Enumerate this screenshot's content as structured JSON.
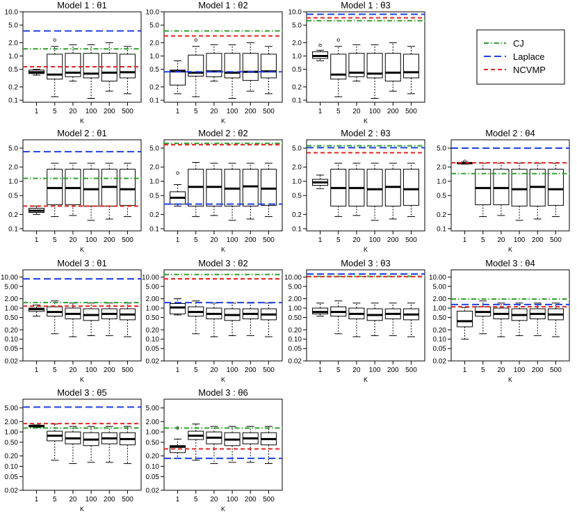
{
  "legend": {
    "position": "top-right",
    "items": [
      {
        "label": "CJ",
        "color": "#2ca02c",
        "dash": "dotdash"
      },
      {
        "label": "Laplace",
        "color": "#1f3fe6",
        "dash": "dashed"
      },
      {
        "label": "NCVMP",
        "color": "#e6231f",
        "dash": "dashed-short"
      }
    ]
  },
  "chart_data": [
    {
      "type": "box",
      "title": "Model 1 : θ1",
      "xlabel": "K",
      "categories": [
        "1",
        "5",
        "20",
        "100",
        "200",
        "500"
      ],
      "yscale": "log",
      "ylim": [
        0.09,
        10
      ],
      "yticks": [
        "0.1",
        "0.2",
        "0.5",
        "1.0",
        "2.0",
        "5.0",
        "10.0"
      ],
      "boxes": [
        {
          "lw": 0.37,
          "q1": 0.4,
          "med": 0.43,
          "q3": 0.48,
          "uw": 0.5,
          "out": []
        },
        {
          "lw": 0.12,
          "q1": 0.3,
          "med": 0.38,
          "q3": 1.1,
          "uw": 1.65,
          "out": [
            2.3
          ]
        },
        {
          "lw": 0.27,
          "q1": 0.34,
          "med": 0.42,
          "q3": 1.15,
          "uw": 1.8,
          "out": []
        },
        {
          "lw": 0.11,
          "q1": 0.32,
          "med": 0.4,
          "q3": 1.15,
          "uw": 1.8,
          "out": []
        },
        {
          "lw": 0.16,
          "q1": 0.27,
          "med": 0.42,
          "q3": 1.15,
          "uw": 2.0,
          "out": []
        },
        {
          "lw": 0.14,
          "q1": 0.32,
          "med": 0.43,
          "q3": 1.1,
          "uw": 1.65,
          "out": []
        }
      ],
      "lines": {
        "CJ": 1.45,
        "Laplace": 3.7,
        "NCVMP": 0.57
      }
    },
    {
      "type": "box",
      "title": "Model 1 : θ2",
      "xlabel": "K",
      "categories": [
        "1",
        "5",
        "20",
        "100",
        "200",
        "500"
      ],
      "yscale": "log",
      "ylim": [
        0.09,
        10
      ],
      "yticks": [
        "0.1",
        "0.2",
        "0.5",
        "1.0",
        "2.0",
        "5.0",
        "10.0"
      ],
      "boxes": [
        {
          "lw": 0.14,
          "q1": 0.22,
          "med": 0.45,
          "q3": 0.48,
          "uw": 0.78,
          "out": []
        },
        {
          "lw": 0.12,
          "q1": 0.35,
          "med": 0.42,
          "q3": 1.05,
          "uw": 1.65,
          "out": [
            2.3
          ]
        },
        {
          "lw": 0.27,
          "q1": 0.34,
          "med": 0.45,
          "q3": 1.15,
          "uw": 1.8,
          "out": []
        },
        {
          "lw": 0.11,
          "q1": 0.32,
          "med": 0.42,
          "q3": 1.15,
          "uw": 1.8,
          "out": []
        },
        {
          "lw": 0.16,
          "q1": 0.28,
          "med": 0.44,
          "q3": 1.15,
          "uw": 2.0,
          "out": []
        },
        {
          "lw": 0.14,
          "q1": 0.32,
          "med": 0.45,
          "q3": 1.1,
          "uw": 1.65,
          "out": []
        }
      ],
      "lines": {
        "CJ": 3.7,
        "Laplace": 0.44,
        "NCVMP": 2.85
      }
    },
    {
      "type": "box",
      "title": "Model 1 : θ3",
      "xlabel": "K",
      "categories": [
        "1",
        "5",
        "20",
        "100",
        "200",
        "500"
      ],
      "yscale": "log",
      "ylim": [
        0.09,
        10
      ],
      "yticks": [
        "0.1",
        "0.2",
        "0.5",
        "1.0",
        "2.0",
        "5.0",
        "10.0"
      ],
      "boxes": [
        {
          "lw": 0.78,
          "q1": 0.88,
          "med": 1.0,
          "q3": 1.25,
          "uw": 1.35,
          "out": [
            1.75
          ]
        },
        {
          "lw": 0.12,
          "q1": 0.3,
          "med": 0.38,
          "q3": 1.1,
          "uw": 1.65,
          "out": [
            2.3
          ]
        },
        {
          "lw": 0.27,
          "q1": 0.34,
          "med": 0.42,
          "q3": 1.15,
          "uw": 1.8,
          "out": []
        },
        {
          "lw": 0.11,
          "q1": 0.32,
          "med": 0.4,
          "q3": 1.15,
          "uw": 1.8,
          "out": []
        },
        {
          "lw": 0.16,
          "q1": 0.27,
          "med": 0.42,
          "q3": 1.15,
          "uw": 2.0,
          "out": []
        },
        {
          "lw": 0.14,
          "q1": 0.32,
          "med": 0.43,
          "q3": 1.1,
          "uw": 1.65,
          "out": []
        }
      ],
      "lines": {
        "CJ": 6.3,
        "Laplace": 8.8,
        "NCVMP": 7.3
      }
    },
    {
      "type": "box",
      "title": "Model 2 : θ1",
      "xlabel": "K",
      "categories": [
        "1",
        "5",
        "20",
        "100",
        "200",
        "500"
      ],
      "yscale": "log",
      "ylim": [
        0.09,
        7.5
      ],
      "yticks": [
        "0.1",
        "0.2",
        "0.5",
        "1.0",
        "2.0",
        "5.0"
      ],
      "boxes": [
        {
          "lw": 0.2,
          "q1": 0.22,
          "med": 0.24,
          "q3": 0.27,
          "uw": 0.3,
          "out": []
        },
        {
          "lw": 0.18,
          "q1": 0.32,
          "med": 0.72,
          "q3": 1.8,
          "uw": 2.4,
          "out": []
        },
        {
          "lw": 0.19,
          "q1": 0.32,
          "med": 0.72,
          "q3": 1.8,
          "uw": 2.4,
          "out": []
        },
        {
          "lw": 0.15,
          "q1": 0.3,
          "med": 0.68,
          "q3": 1.8,
          "uw": 2.4,
          "out": []
        },
        {
          "lw": 0.16,
          "q1": 0.3,
          "med": 0.76,
          "q3": 1.8,
          "uw": 2.4,
          "out": []
        },
        {
          "lw": 0.18,
          "q1": 0.31,
          "med": 0.68,
          "q3": 1.8,
          "uw": 2.4,
          "out": []
        }
      ],
      "lines": {
        "CJ": 1.15,
        "Laplace": 4.2,
        "NCVMP": 0.3
      }
    },
    {
      "type": "box",
      "title": "Model 2 : θ2",
      "xlabel": "K",
      "categories": [
        "1",
        "5",
        "20",
        "100",
        "200",
        "500"
      ],
      "yscale": "log",
      "ylim": [
        0.09,
        7.5
      ],
      "yticks": [
        "0.1",
        "0.2",
        "0.5",
        "1.0",
        "2.0",
        "5.0"
      ],
      "boxes": [
        {
          "lw": 0.3,
          "q1": 0.33,
          "med": 0.45,
          "q3": 0.6,
          "uw": 0.85,
          "out": [
            1.5
          ]
        },
        {
          "lw": 0.18,
          "q1": 0.3,
          "med": 0.76,
          "q3": 1.8,
          "uw": 2.5,
          "out": []
        },
        {
          "lw": 0.19,
          "q1": 0.3,
          "med": 0.76,
          "q3": 1.8,
          "uw": 2.4,
          "out": []
        },
        {
          "lw": 0.15,
          "q1": 0.3,
          "med": 0.7,
          "q3": 1.8,
          "uw": 2.4,
          "out": []
        },
        {
          "lw": 0.16,
          "q1": 0.3,
          "med": 0.78,
          "q3": 1.8,
          "uw": 2.4,
          "out": []
        },
        {
          "lw": 0.18,
          "q1": 0.31,
          "med": 0.7,
          "q3": 1.8,
          "uw": 2.4,
          "out": []
        }
      ],
      "lines": {
        "CJ": 6.3,
        "Laplace": 0.33,
        "NCVMP": 5.9
      }
    },
    {
      "type": "box",
      "title": "Model 2 : θ3",
      "xlabel": "K",
      "categories": [
        "1",
        "5",
        "20",
        "100",
        "200",
        "500"
      ],
      "yscale": "log",
      "ylim": [
        0.09,
        7.5
      ],
      "yticks": [
        "0.1",
        "0.2",
        "0.5",
        "1.0",
        "2.0",
        "5.0"
      ],
      "boxes": [
        {
          "lw": 0.7,
          "q1": 0.82,
          "med": 0.95,
          "q3": 1.1,
          "uw": 1.35,
          "out": []
        },
        {
          "lw": 0.18,
          "q1": 0.3,
          "med": 0.72,
          "q3": 1.8,
          "uw": 2.4,
          "out": []
        },
        {
          "lw": 0.19,
          "q1": 0.3,
          "med": 0.72,
          "q3": 1.8,
          "uw": 2.4,
          "out": []
        },
        {
          "lw": 0.15,
          "q1": 0.3,
          "med": 0.68,
          "q3": 1.8,
          "uw": 2.4,
          "out": []
        },
        {
          "lw": 0.16,
          "q1": 0.3,
          "med": 0.76,
          "q3": 1.8,
          "uw": 2.4,
          "out": []
        },
        {
          "lw": 0.18,
          "q1": 0.31,
          "med": 0.68,
          "q3": 1.8,
          "uw": 2.4,
          "out": []
        }
      ],
      "lines": {
        "CJ": 5.6,
        "Laplace": 5.1,
        "NCVMP": 4.0
      }
    },
    {
      "type": "box",
      "title": "Model 2 : θ4",
      "xlabel": "K",
      "categories": [
        "1",
        "5",
        "20",
        "100",
        "200",
        "500"
      ],
      "yscale": "log",
      "ylim": [
        0.09,
        7.5
      ],
      "yticks": [
        "0.1",
        "0.2",
        "0.5",
        "1.0",
        "2.0",
        "5.0"
      ],
      "boxes": [
        {
          "lw": 2.3,
          "q1": 2.35,
          "med": 2.4,
          "q3": 2.5,
          "uw": 2.55,
          "out": [
            2.65
          ]
        },
        {
          "lw": 0.18,
          "q1": 0.32,
          "med": 0.72,
          "q3": 1.8,
          "uw": 2.4,
          "out": []
        },
        {
          "lw": 0.19,
          "q1": 0.32,
          "med": 0.72,
          "q3": 1.8,
          "uw": 2.4,
          "out": []
        },
        {
          "lw": 0.15,
          "q1": 0.3,
          "med": 0.68,
          "q3": 1.8,
          "uw": 2.4,
          "out": []
        },
        {
          "lw": 0.16,
          "q1": 0.3,
          "med": 0.76,
          "q3": 1.8,
          "uw": 2.4,
          "out": []
        },
        {
          "lw": 0.18,
          "q1": 0.31,
          "med": 0.68,
          "q3": 1.8,
          "uw": 2.4,
          "out": []
        }
      ],
      "lines": {
        "CJ": 1.45,
        "Laplace": 5.0,
        "NCVMP": 2.45
      }
    },
    {
      "type": "box",
      "title": "Model 3 : θ1",
      "xlabel": "K",
      "categories": [
        "1",
        "5",
        "20",
        "100",
        "200",
        "500"
      ],
      "yscale": "log",
      "ylim": [
        0.02,
        17
      ],
      "yticks": [
        "0.02",
        "0.05",
        "0.10",
        "0.20",
        "0.50",
        "1.00",
        "2.00",
        "5.00",
        "10.00"
      ],
      "boxes": [
        {
          "lw": 0.55,
          "q1": 0.78,
          "med": 0.92,
          "q3": 1.0,
          "uw": 1.25,
          "out": []
        },
        {
          "lw": 0.15,
          "q1": 0.55,
          "med": 0.75,
          "q3": 1.1,
          "uw": 1.7,
          "out": []
        },
        {
          "lw": 0.12,
          "q1": 0.45,
          "med": 0.65,
          "q3": 1.0,
          "uw": 1.45,
          "out": []
        },
        {
          "lw": 0.13,
          "q1": 0.4,
          "med": 0.6,
          "q3": 0.95,
          "uw": 1.45,
          "out": []
        },
        {
          "lw": 0.13,
          "q1": 0.45,
          "med": 0.65,
          "q3": 0.95,
          "uw": 1.45,
          "out": []
        },
        {
          "lw": 0.12,
          "q1": 0.42,
          "med": 0.62,
          "q3": 0.95,
          "uw": 1.45,
          "out": []
        }
      ],
      "lines": {
        "CJ": 1.5,
        "Laplace": 8.7,
        "NCVMP": 1.15
      }
    },
    {
      "type": "box",
      "title": "Model 3 : θ2",
      "xlabel": "K",
      "categories": [
        "1",
        "5",
        "20",
        "100",
        "200",
        "500"
      ],
      "yscale": "log",
      "ylim": [
        0.02,
        17
      ],
      "yticks": [
        "0.02",
        "0.05",
        "0.10",
        "0.20",
        "0.50",
        "1.00",
        "2.00",
        "5.00",
        "10.00"
      ],
      "boxes": [
        {
          "lw": 0.6,
          "q1": 0.65,
          "med": 1.05,
          "q3": 1.4,
          "uw": 2.0,
          "out": []
        },
        {
          "lw": 0.15,
          "q1": 0.55,
          "med": 0.75,
          "q3": 1.1,
          "uw": 1.7,
          "out": []
        },
        {
          "lw": 0.12,
          "q1": 0.45,
          "med": 0.65,
          "q3": 1.0,
          "uw": 1.45,
          "out": []
        },
        {
          "lw": 0.13,
          "q1": 0.4,
          "med": 0.6,
          "q3": 0.95,
          "uw": 1.45,
          "out": []
        },
        {
          "lw": 0.13,
          "q1": 0.45,
          "med": 0.65,
          "q3": 0.95,
          "uw": 1.45,
          "out": []
        },
        {
          "lw": 0.12,
          "q1": 0.42,
          "med": 0.62,
          "q3": 0.95,
          "uw": 1.45,
          "out": []
        }
      ],
      "lines": {
        "CJ": 12.0,
        "Laplace": 1.5,
        "NCVMP": 8.7
      }
    },
    {
      "type": "box",
      "title": "Model 3 : θ3",
      "xlabel": "K",
      "categories": [
        "1",
        "5",
        "20",
        "100",
        "200",
        "500"
      ],
      "yscale": "log",
      "ylim": [
        0.02,
        17
      ],
      "yticks": [
        "0.02",
        "0.05",
        "0.10",
        "0.20",
        "0.50",
        "1.00",
        "2.00",
        "5.00",
        "10.00"
      ],
      "boxes": [
        {
          "lw": 0.55,
          "q1": 0.65,
          "med": 0.75,
          "q3": 1.0,
          "uw": 1.45,
          "out": []
        },
        {
          "lw": 0.15,
          "q1": 0.55,
          "med": 0.75,
          "q3": 1.1,
          "uw": 1.7,
          "out": []
        },
        {
          "lw": 0.12,
          "q1": 0.45,
          "med": 0.65,
          "q3": 1.0,
          "uw": 1.45,
          "out": []
        },
        {
          "lw": 0.13,
          "q1": 0.4,
          "med": 0.6,
          "q3": 0.95,
          "uw": 1.45,
          "out": []
        },
        {
          "lw": 0.13,
          "q1": 0.45,
          "med": 0.65,
          "q3": 0.95,
          "uw": 1.45,
          "out": []
        },
        {
          "lw": 0.12,
          "q1": 0.42,
          "med": 0.62,
          "q3": 0.95,
          "uw": 1.45,
          "out": []
        }
      ],
      "lines": {
        "CJ": 10.5,
        "Laplace": 12.5,
        "NCVMP": 10.3
      }
    },
    {
      "type": "box",
      "title": "Model 3 : θ4",
      "xlabel": "K",
      "categories": [
        "1",
        "5",
        "20",
        "100",
        "200",
        "500"
      ],
      "yscale": "log",
      "ylim": [
        0.02,
        17
      ],
      "yticks": [
        "0.02",
        "0.05",
        "0.10",
        "0.20",
        "0.50",
        "1.00",
        "2.00",
        "5.00",
        "10.00"
      ],
      "boxes": [
        {
          "lw": 0.1,
          "q1": 0.25,
          "med": 0.38,
          "q3": 0.8,
          "uw": 1.05,
          "out": []
        },
        {
          "lw": 0.15,
          "q1": 0.55,
          "med": 0.75,
          "q3": 1.1,
          "uw": 1.7,
          "out": []
        },
        {
          "lw": 0.12,
          "q1": 0.45,
          "med": 0.65,
          "q3": 1.0,
          "uw": 1.45,
          "out": []
        },
        {
          "lw": 0.13,
          "q1": 0.4,
          "med": 0.6,
          "q3": 0.95,
          "uw": 1.45,
          "out": []
        },
        {
          "lw": 0.13,
          "q1": 0.45,
          "med": 0.65,
          "q3": 0.95,
          "uw": 1.45,
          "out": []
        },
        {
          "lw": 0.12,
          "q1": 0.42,
          "med": 0.62,
          "q3": 0.95,
          "uw": 1.45,
          "out": []
        }
      ],
      "lines": {
        "CJ": 1.95,
        "Laplace": 1.3,
        "NCVMP": 1.1
      }
    },
    {
      "type": "box",
      "title": "Model 3 : θ5",
      "xlabel": "K",
      "categories": [
        "1",
        "5",
        "20",
        "100",
        "200",
        "500"
      ],
      "yscale": "log",
      "ylim": [
        0.02,
        9
      ],
      "yticks": [
        "0.02",
        "0.05",
        "0.10",
        "0.20",
        "0.50",
        "1.00",
        "2.00",
        "5.00"
      ],
      "boxes": [
        {
          "lw": 1.35,
          "q1": 1.4,
          "med": 1.5,
          "q3": 1.55,
          "uw": 1.6,
          "out": []
        },
        {
          "lw": 0.15,
          "q1": 0.55,
          "med": 0.78,
          "q3": 1.05,
          "uw": 1.7,
          "out": []
        },
        {
          "lw": 0.12,
          "q1": 0.45,
          "med": 0.65,
          "q3": 1.0,
          "uw": 1.45,
          "out": []
        },
        {
          "lw": 0.13,
          "q1": 0.4,
          "med": 0.6,
          "q3": 0.95,
          "uw": 1.45,
          "out": []
        },
        {
          "lw": 0.13,
          "q1": 0.45,
          "med": 0.65,
          "q3": 0.95,
          "uw": 1.45,
          "out": []
        },
        {
          "lw": 0.12,
          "q1": 0.42,
          "med": 0.62,
          "q3": 0.95,
          "uw": 1.45,
          "out": []
        }
      ],
      "lines": {
        "CJ": 1.3,
        "Laplace": 5.3,
        "NCVMP": 1.75
      }
    },
    {
      "type": "box",
      "title": "Model 3 : θ6",
      "xlabel": "K",
      "categories": [
        "1",
        "5",
        "20",
        "100",
        "200",
        "500"
      ],
      "yscale": "log",
      "ylim": [
        0.02,
        9
      ],
      "yticks": [
        "0.02",
        "0.05",
        "0.10",
        "0.20",
        "0.50",
        "1.00",
        "2.00",
        "5.00"
      ],
      "boxes": [
        {
          "lw": 0.17,
          "q1": 0.25,
          "med": 0.37,
          "q3": 0.4,
          "uw": 0.62,
          "out": [
            1.3
          ]
        },
        {
          "lw": 0.15,
          "q1": 0.6,
          "med": 0.78,
          "q3": 1.05,
          "uw": 1.7,
          "out": []
        },
        {
          "lw": 0.12,
          "q1": 0.45,
          "med": 0.68,
          "q3": 1.0,
          "uw": 1.45,
          "out": []
        },
        {
          "lw": 0.13,
          "q1": 0.4,
          "med": 0.6,
          "q3": 0.95,
          "uw": 1.45,
          "out": []
        },
        {
          "lw": 0.13,
          "q1": 0.45,
          "med": 0.65,
          "q3": 0.95,
          "uw": 1.45,
          "out": []
        },
        {
          "lw": 0.12,
          "q1": 0.42,
          "med": 0.62,
          "q3": 0.95,
          "uw": 1.45,
          "out": []
        }
      ],
      "lines": {
        "CJ": 1.3,
        "Laplace": 0.17,
        "NCVMP": 0.32
      }
    }
  ]
}
